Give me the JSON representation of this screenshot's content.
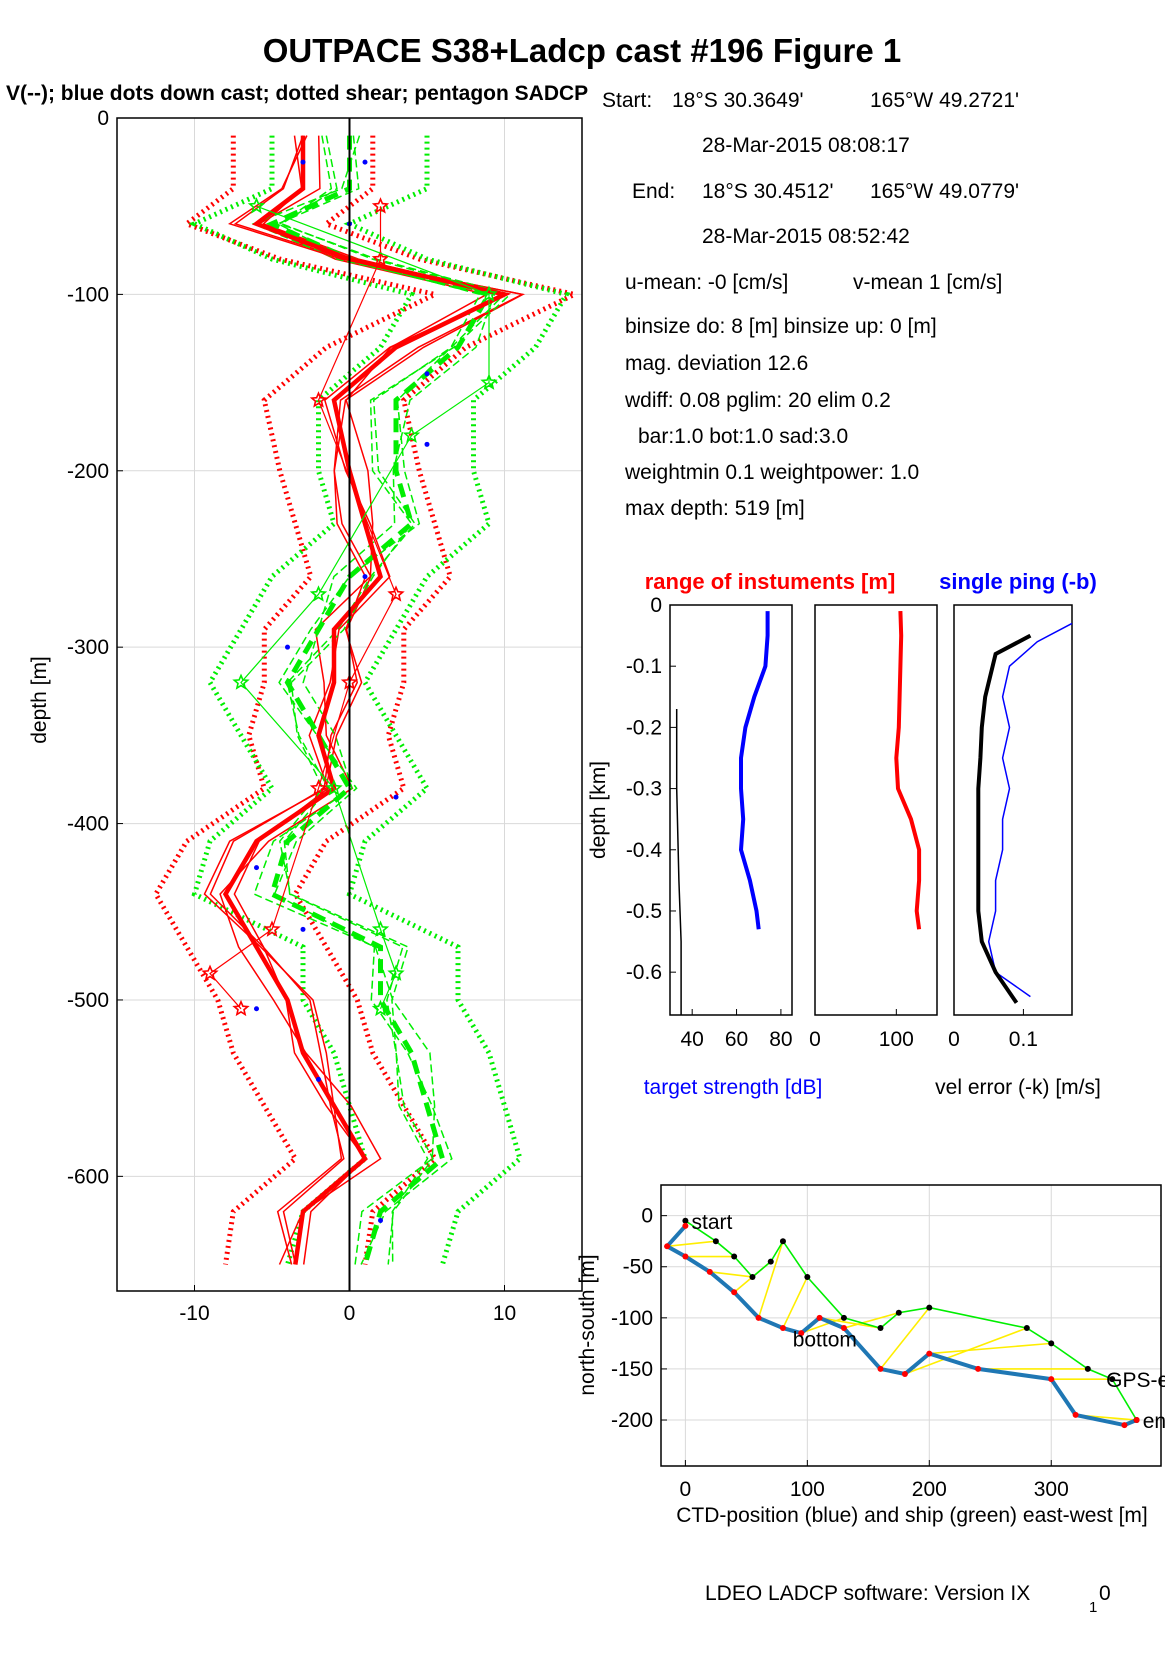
{
  "figure": {
    "title": "OUTPACE S38+Ladcp cast #196  Figure 1",
    "subtitle": "V(--); blue dots down cast; dotted shear; pentagon SADCP",
    "footer": "LDEO LADCP software: Version IX",
    "footer_sub": "1",
    "footer_end": "0"
  },
  "info": {
    "start_label": "Start:",
    "start_lat": "18°S 30.3649'",
    "start_lon": "165°W 49.2721'",
    "start_time": "28-Mar-2015 08:08:17",
    "end_label": "End:",
    "end_lat": "18°S 30.4512'",
    "end_lon": "165°W 49.0779'",
    "end_time": "28-Mar-2015 08:52:42",
    "u_mean": "u-mean:  -0 [cm/s]",
    "v_mean": "v-mean   1 [cm/s]",
    "binsize": "binsize do: 8 [m]  binsize up:  0 [m]",
    "mag_dev": "mag. deviation 12.6",
    "wdiff": "wdiff: 0.08  pglim: 20  elim 0.2",
    "bar": "bar:1.0 bot:1.0 sad:3.0",
    "weight": "weightmin 0.1  weightpower: 1.0",
    "maxdepth": "max depth: 519 [m]"
  },
  "colors": {
    "red": "#ff0000",
    "green": "#00ee00",
    "blue": "#0000ff",
    "ctd_blue": "#1f77b4",
    "yellow": "#ffee00",
    "grid": "#d9d9d9"
  },
  "chart_data": [
    {
      "type": "line",
      "name": "velocity-profile",
      "ylabel": "depth [m]",
      "xlabel": "",
      "xlim": [
        -15,
        15
      ],
      "ylim": [
        -665,
        0
      ],
      "xticks": [
        "-10",
        "0",
        "10"
      ],
      "yticks": [
        "0",
        "-100",
        "-200",
        "-300",
        "-400",
        "-500",
        "-600"
      ],
      "grid": true,
      "depth": [
        -10,
        -40,
        -60,
        -80,
        -100,
        -130,
        -160,
        -200,
        -230,
        -260,
        -290,
        -320,
        -350,
        -380,
        -410,
        -440,
        -470,
        -500,
        -530,
        -560,
        -590,
        -620,
        -650
      ],
      "series": [
        {
          "name": "U",
          "color": "#ff0000",
          "style": "thick",
          "x": [
            -3,
            -3,
            -6,
            0,
            10,
            3,
            -1,
            0,
            1,
            2,
            -1,
            -1,
            -2,
            -1,
            -6,
            -8,
            -6,
            -4,
            -3,
            -1,
            1,
            -3,
            -3.5
          ]
        },
        {
          "name": "V",
          "color": "#00ee00",
          "style": "dashed",
          "x": [
            0,
            0,
            -5,
            0,
            9,
            7,
            3,
            3,
            4,
            0,
            -2,
            -4,
            -2,
            0,
            -4,
            -5,
            2,
            2,
            4,
            5,
            6,
            2,
            1
          ]
        }
      ],
      "sadcp_u_depth": [
        -50,
        -80,
        -160,
        -270,
        -320,
        -380,
        -460,
        -485,
        -505
      ],
      "sadcp_u": [
        2,
        2,
        -2,
        3,
        0,
        -2,
        -5,
        -9,
        -7
      ],
      "sadcp_v_depth": [
        -50,
        -100,
        -150,
        -180,
        -270,
        -320,
        -380,
        -460,
        -485,
        -505
      ],
      "sadcp_v": [
        -6,
        9,
        9,
        4,
        -2,
        -7,
        -1,
        2,
        3,
        2
      ],
      "downcast_dots_depth": [
        -25,
        -25,
        -60,
        -145,
        -185,
        -260,
        -300,
        -385,
        -425,
        -460,
        -505,
        -545,
        -625
      ],
      "downcast_dots_x": [
        -3,
        1,
        0,
        5,
        5,
        1,
        -4,
        3,
        -6,
        -3,
        -6,
        -2,
        2
      ]
    },
    {
      "type": "line",
      "name": "target-strength",
      "title": "range of instuments [m]",
      "xlabel": "target strength [dB]",
      "ylabel": "depth [km]",
      "xlim": [
        30,
        85
      ],
      "ylim": [
        -0.67,
        0
      ],
      "xticks": [
        "40",
        "60",
        "80"
      ],
      "yticks": [
        "0",
        "-0.1",
        "-0.2",
        "-0.3",
        "-0.4",
        "-0.5",
        "-0.6"
      ],
      "series": [
        {
          "name": "target strength",
          "color": "#0000ff",
          "y": [
            -0.01,
            -0.05,
            -0.1,
            -0.15,
            -0.2,
            -0.25,
            -0.3,
            -0.35,
            -0.4,
            -0.45,
            -0.5,
            -0.53
          ],
          "x": [
            74,
            74,
            73,
            68,
            64,
            62,
            62,
            63,
            62,
            66,
            69,
            70
          ]
        },
        {
          "name": "range",
          "color": "#000000",
          "y": [
            -0.17,
            -0.3,
            -0.45,
            -0.55,
            -0.67
          ],
          "x": [
            33,
            33,
            34,
            35,
            35
          ]
        }
      ]
    },
    {
      "type": "line",
      "name": "range-panel",
      "xlim": [
        0,
        150
      ],
      "ylim": [
        -0.67,
        0
      ],
      "xticks": [
        "0",
        "100"
      ],
      "series": [
        {
          "name": "range",
          "color": "#ff0000",
          "y": [
            -0.01,
            -0.05,
            -0.1,
            -0.15,
            -0.2,
            -0.25,
            -0.3,
            -0.35,
            -0.4,
            -0.45,
            -0.5,
            -0.53
          ],
          "x": [
            105,
            106,
            105,
            104,
            103,
            100,
            102,
            118,
            128,
            128,
            125,
            128
          ]
        }
      ]
    },
    {
      "type": "line",
      "name": "vel-error",
      "title": "single ping (-b)",
      "xlabel": "vel error (-k) [m/s]",
      "xlim": [
        0,
        0.17
      ],
      "ylim": [
        -0.67,
        0
      ],
      "xticks": [
        "0",
        "0.1"
      ],
      "series": [
        {
          "name": "single ping",
          "color": "#0000ff",
          "y": [
            -0.03,
            -0.06,
            -0.1,
            -0.15,
            -0.2,
            -0.25,
            -0.3,
            -0.35,
            -0.4,
            -0.45,
            -0.5,
            -0.55,
            -0.6,
            -0.64
          ],
          "x": [
            0.17,
            0.12,
            0.08,
            0.07,
            0.08,
            0.07,
            0.08,
            0.07,
            0.07,
            0.06,
            0.06,
            0.05,
            0.06,
            0.11
          ]
        },
        {
          "name": "vel error",
          "color": "#000000",
          "y": [
            -0.05,
            -0.08,
            -0.15,
            -0.2,
            -0.25,
            -0.3,
            -0.35,
            -0.4,
            -0.45,
            -0.5,
            -0.55,
            -0.6,
            -0.65
          ],
          "x": [
            0.11,
            0.06,
            0.045,
            0.04,
            0.038,
            0.035,
            0.035,
            0.035,
            0.035,
            0.035,
            0.04,
            0.06,
            0.09
          ]
        }
      ]
    },
    {
      "type": "line",
      "name": "track",
      "xlabel": "CTD-position (blue) and ship (green) east-west [m]",
      "ylabel": "north-south [m]",
      "xlim": [
        -20,
        390
      ],
      "ylim": [
        -245,
        30
      ],
      "xticks": [
        "0",
        "100",
        "200",
        "300"
      ],
      "yticks": [
        "0",
        "-50",
        "-100",
        "-150",
        "-200"
      ],
      "grid": true,
      "series": [
        {
          "name": "CTD",
          "color": "#1f77b4",
          "x": [
            0,
            -15,
            0,
            20,
            40,
            60,
            80,
            95,
            110,
            130,
            160,
            180,
            200,
            240,
            300,
            320,
            360,
            370
          ],
          "y": [
            -10,
            -30,
            -40,
            -55,
            -75,
            -100,
            -110,
            -115,
            -100,
            -110,
            -150,
            -155,
            -135,
            -150,
            -160,
            -195,
            -205,
            -200
          ]
        },
        {
          "name": "ship",
          "color": "#00ee00",
          "x": [
            0,
            25,
            40,
            55,
            70,
            80,
            100,
            130,
            160,
            175,
            200,
            280,
            300,
            330,
            350,
            370
          ],
          "y": [
            -5,
            -25,
            -40,
            -60,
            -45,
            -25,
            -60,
            -100,
            -110,
            -95,
            -90,
            -110,
            -125,
            -150,
            -160,
            -200
          ]
        }
      ],
      "labels": [
        {
          "text": "start",
          "x": 5,
          "y": -5
        },
        {
          "text": "bottom",
          "x": 88,
          "y": -120
        },
        {
          "text": "GPS-end",
          "x": 345,
          "y": -160
        },
        {
          "text": "end",
          "x": 375,
          "y": -200
        }
      ]
    }
  ]
}
